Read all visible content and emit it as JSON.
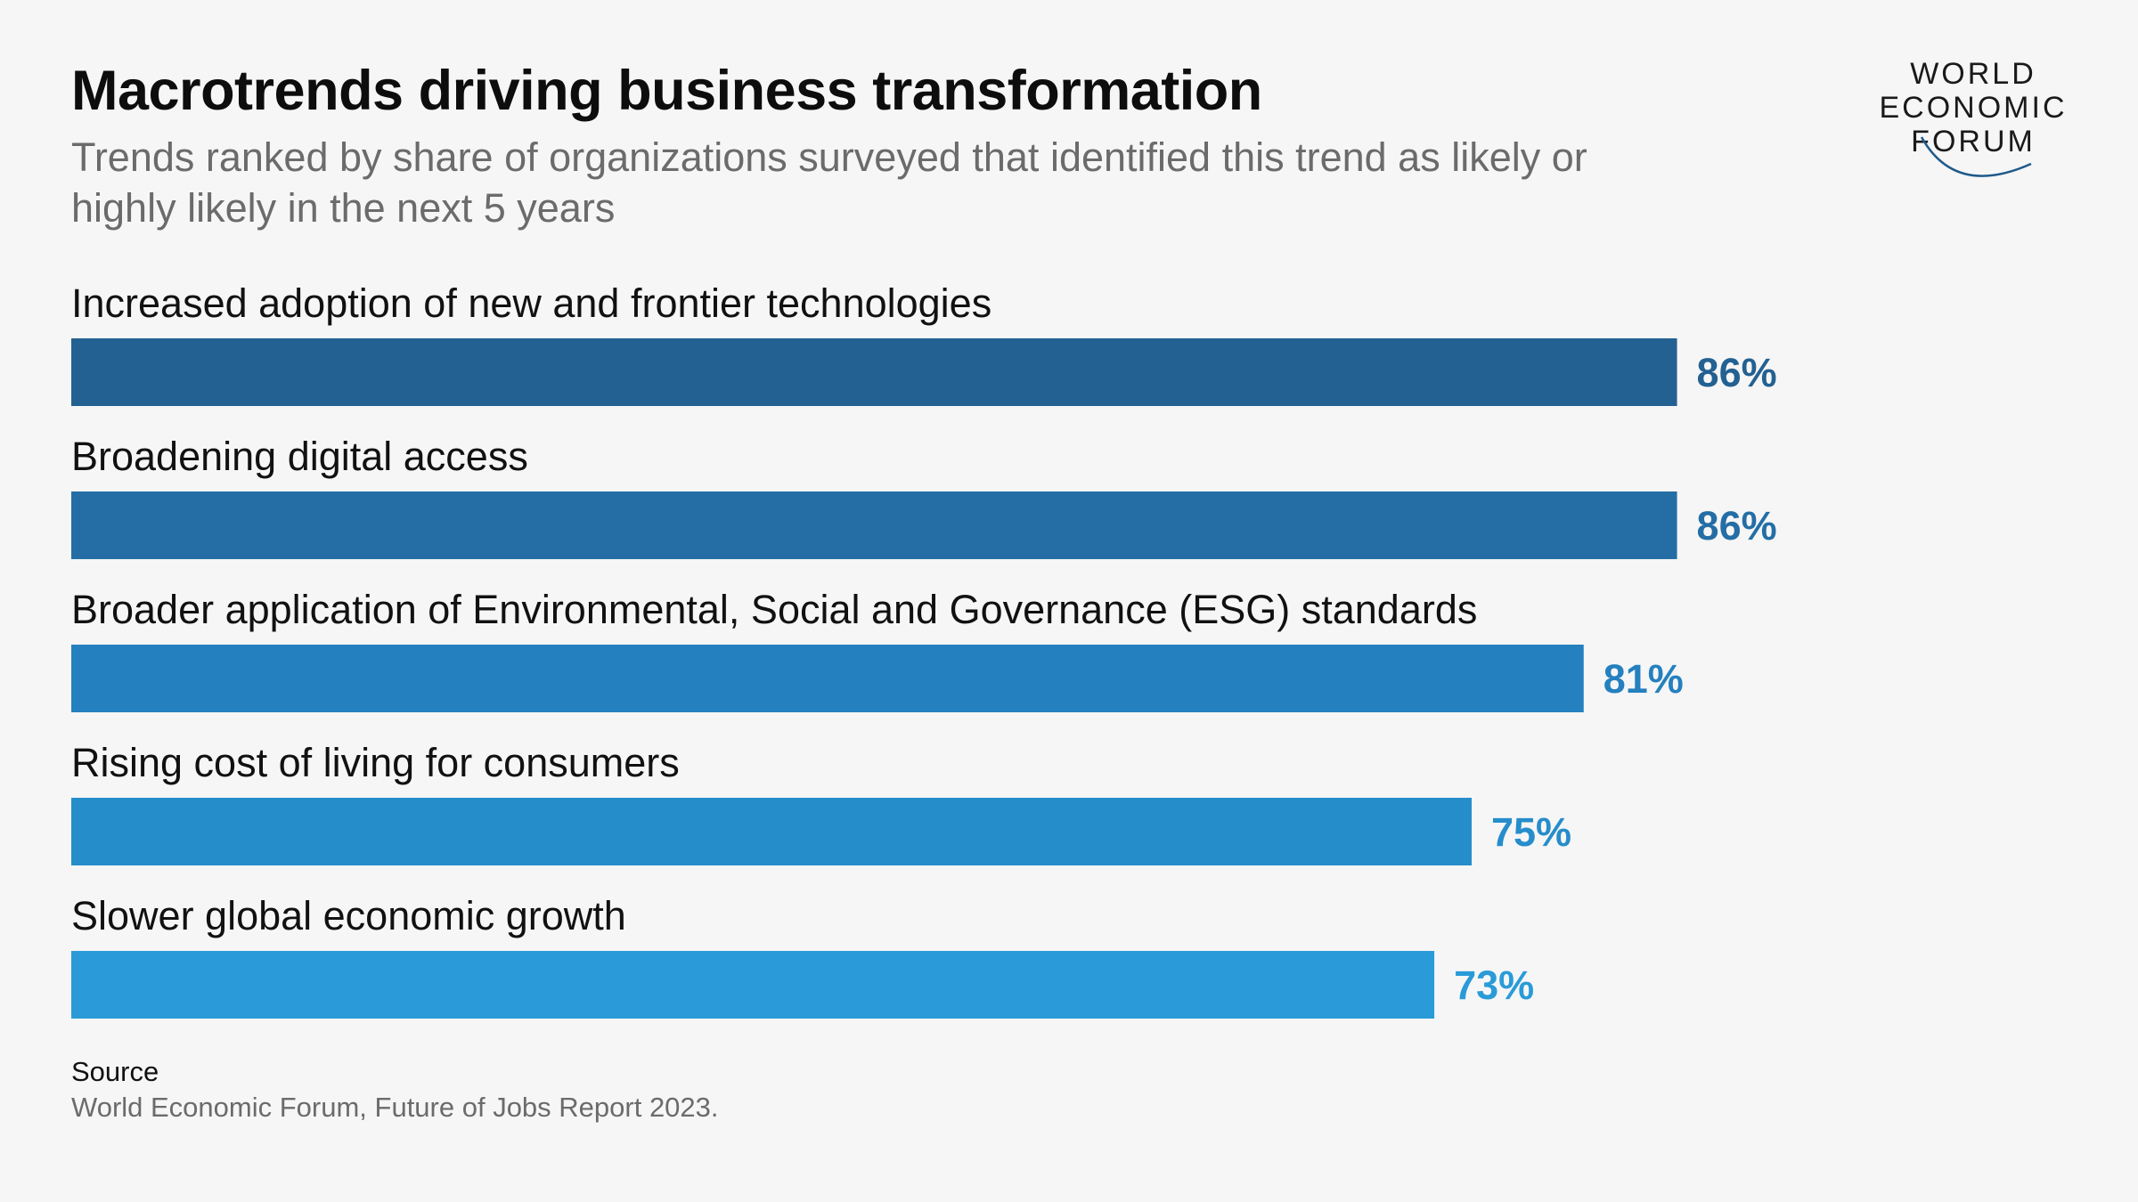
{
  "header": {
    "title": "Macrotrends driving business transformation",
    "subtitle": "Trends ranked by share of organizations surveyed that identified this trend as likely or highly likely in the next 5 years"
  },
  "logo": {
    "line1": "WORLD",
    "line2": "ECONOMIC",
    "line3": "FORUM",
    "accent_color": "#1f5a8a"
  },
  "chart_data": {
    "type": "bar",
    "orientation": "horizontal",
    "categories": [
      "Increased adoption of new and frontier technologies",
      "Broadening digital access",
      "Broader application of Environmental, Social and Governance (ESG) standards",
      "Rising cost of living for consumers",
      "Slower global economic growth"
    ],
    "values": [
      86,
      86,
      81,
      75,
      73
    ],
    "labels": [
      "86%",
      "86%",
      "81%",
      "75%",
      "73%"
    ],
    "colors": [
      "#236192",
      "#246ea5",
      "#2580bf",
      "#268dcb",
      "#2a9bd8"
    ],
    "xlim": [
      0,
      100
    ],
    "grid": false,
    "legend": "none"
  },
  "source": {
    "label": "Source",
    "text": "World Economic Forum, Future of Jobs Report 2023."
  }
}
